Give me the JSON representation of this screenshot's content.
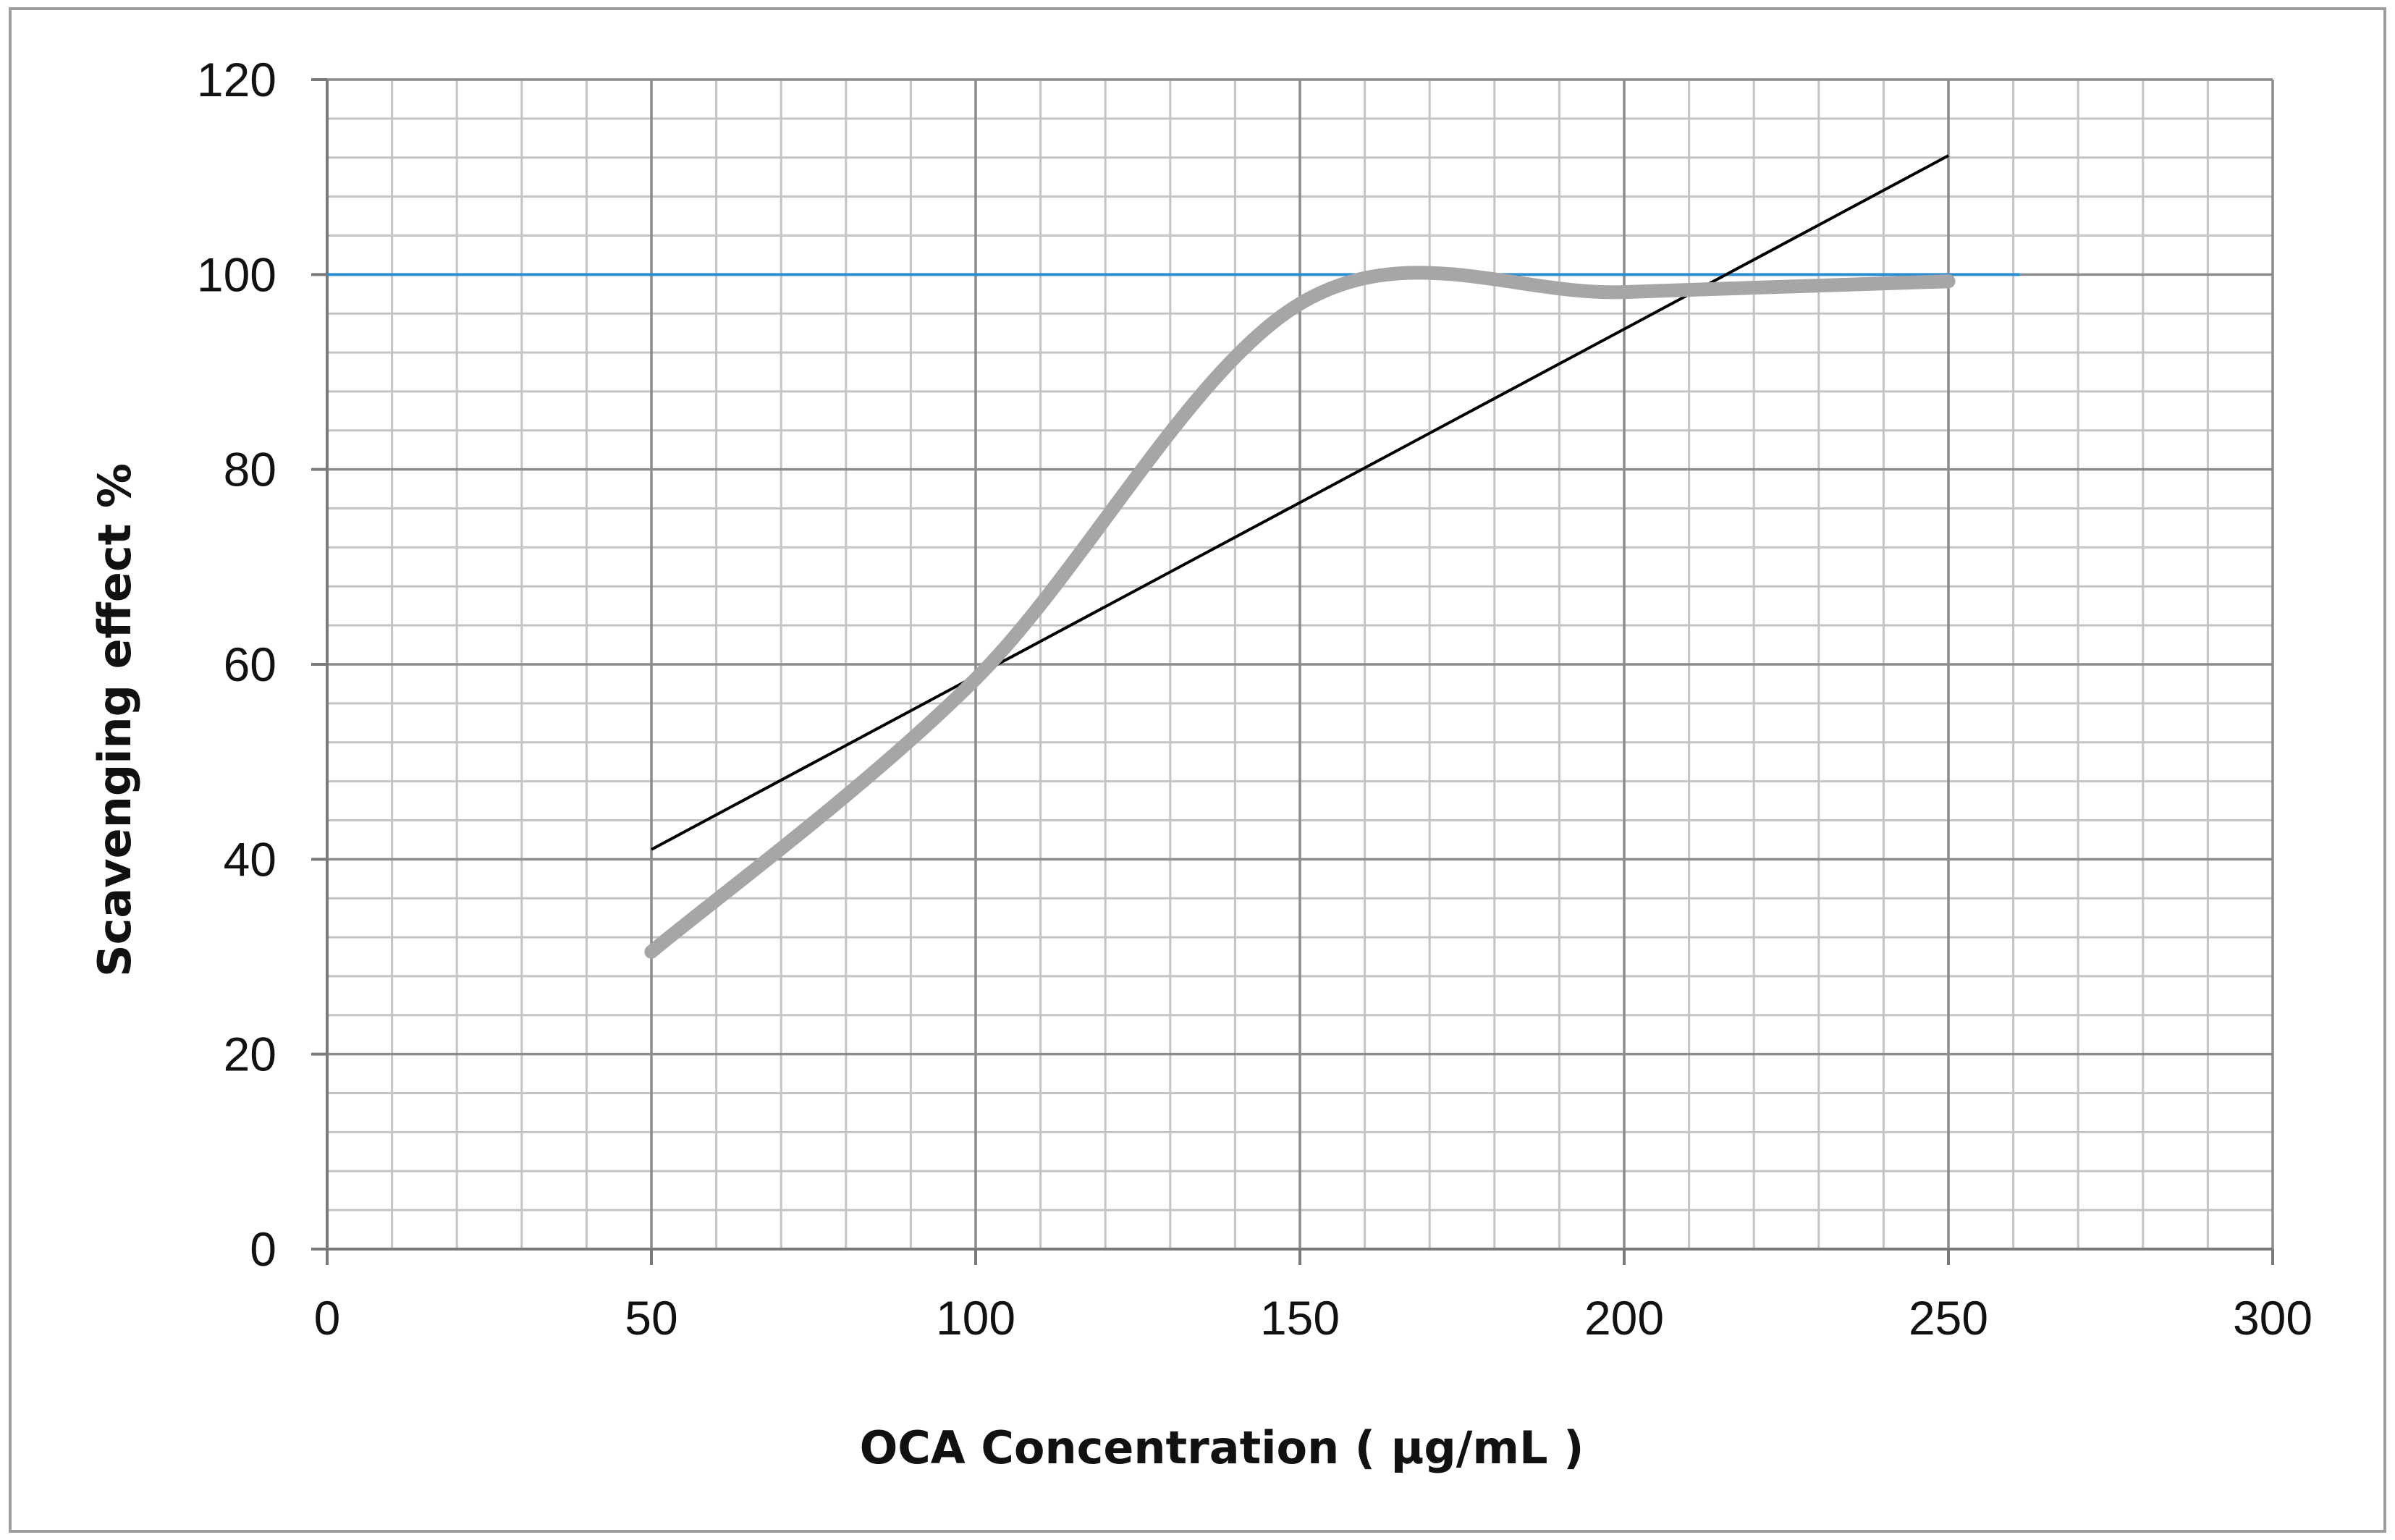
{
  "chart_data": {
    "type": "line",
    "title": "",
    "xlabel": "OCA Concentration ( µg/mL )",
    "ylabel": "Scavenging effect %",
    "xlim": [
      0,
      300
    ],
    "ylim": [
      0,
      120
    ],
    "x_ticks": [
      0,
      50,
      100,
      150,
      200,
      250,
      300
    ],
    "y_ticks": [
      0,
      20,
      40,
      60,
      80,
      100,
      120
    ],
    "x_tick_labels": [
      "0",
      "50",
      "100",
      "150",
      "200",
      "250",
      "300"
    ],
    "y_tick_labels": [
      "0",
      "20",
      "40",
      "60",
      "80",
      "100",
      "120"
    ],
    "minor_grid": {
      "x_step": 10,
      "y_step": 4
    },
    "grid": true,
    "legend": "none",
    "series": [
      {
        "name": "scavenging-effect",
        "kind": "smooth-line",
        "color": "#a6a6a6",
        "x": [
          50,
          100,
          150,
          200,
          250
        ],
        "y": [
          30.5,
          58.5,
          97,
          98.2,
          99.3
        ]
      },
      {
        "name": "linear-trendline",
        "kind": "line",
        "color": "#000000",
        "x": [
          50,
          250
        ],
        "y": [
          41,
          112.2
        ]
      },
      {
        "name": "reference-line-100",
        "kind": "hline",
        "color": "#2e8fd0",
        "x": [
          0,
          261
        ],
        "y": [
          100,
          100
        ]
      }
    ]
  },
  "colors": {
    "major_grid": "#8c8c8c",
    "minor_grid": "#c4c4c4",
    "frame_border": "#9e9e9e"
  }
}
